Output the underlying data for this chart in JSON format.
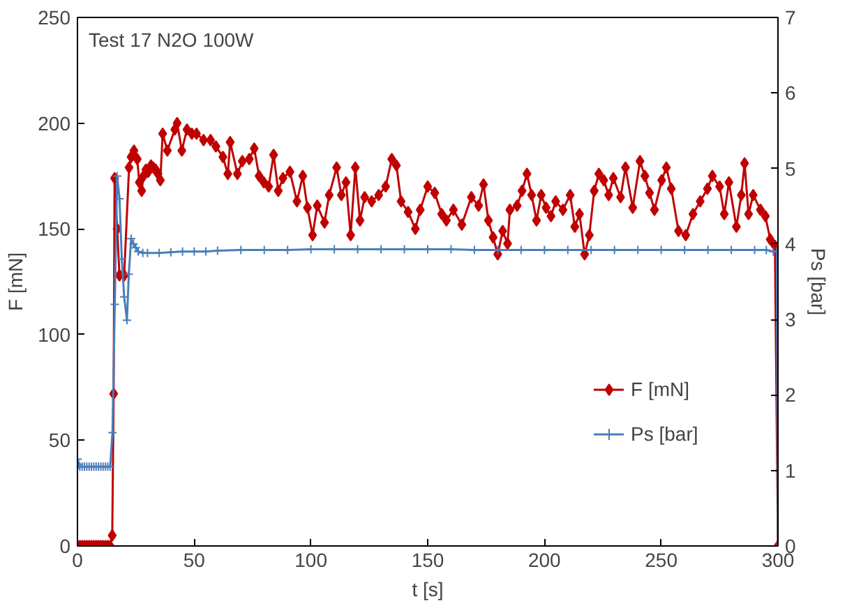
{
  "chart_data": {
    "type": "line",
    "title": "Test 17 N2O 100W",
    "xlabel": "t [s]",
    "ylabel": "F [mN]",
    "y2label": "Ps [bar]",
    "xlim": [
      0,
      300
    ],
    "xticks": [
      0,
      50,
      100,
      150,
      200,
      250,
      300
    ],
    "ylim": [
      0,
      250
    ],
    "yticks": [
      0,
      50,
      100,
      150,
      200,
      250
    ],
    "y2lim": [
      0,
      7
    ],
    "y2ticks": [
      0,
      1,
      2,
      3,
      4,
      5,
      6,
      7
    ],
    "grid": false,
    "legend": "right",
    "line_style": "solid",
    "series": [
      {
        "name": "F [mN]",
        "color": "#c00000",
        "marker": "diamond",
        "x": [
          0,
          1,
          2,
          3,
          4,
          5,
          6,
          7,
          8,
          9,
          10,
          11,
          12,
          13,
          14,
          14.9,
          15.5,
          15.9,
          17,
          18,
          20,
          22.1,
          23,
          24.2,
          25.6,
          26.5,
          27.5,
          28.3,
          29.3,
          30.3,
          31.5,
          32.5,
          33.5,
          34.5,
          35.5,
          36.5,
          38.5,
          41.7,
          42.7,
          44.7,
          46.9,
          49,
          51,
          54,
          57,
          59.3,
          62.3,
          64.4,
          65.4,
          68.5,
          70.6,
          73.6,
          75.7,
          77.8,
          79.8,
          81.9,
          84,
          86,
          88,
          91,
          94,
          96.5,
          98.5,
          100.7,
          102.7,
          105.8,
          107.8,
          111,
          113,
          115,
          117,
          119,
          121,
          123,
          126,
          129,
          132,
          134.6,
          136.6,
          138.6,
          141.6,
          144.7,
          146.8,
          150,
          153,
          156,
          158,
          161,
          164.6,
          168.7,
          171.8,
          173.9,
          176,
          178,
          180,
          182.1,
          184.2,
          185.2,
          188.3,
          190.4,
          192.5,
          194.5,
          196.6,
          198.6,
          200.7,
          202.8,
          204.8,
          207.9,
          211,
          213,
          215,
          217.2,
          219.2,
          221.3,
          223.3,
          225.4,
          227.5,
          229.5,
          232.6,
          234.7,
          237.8,
          240.9,
          243,
          245,
          247.1,
          250.2,
          252.2,
          254.3,
          257.4,
          260.5,
          263.6,
          266.7,
          269.8,
          271.9,
          275,
          277,
          279,
          282.2,
          284.3,
          285.7,
          287.4,
          289.4,
          292.5,
          294.6,
          296.7,
          298.7,
          300
        ],
        "values": [
          0,
          0,
          0,
          0,
          0,
          0,
          0,
          0,
          0,
          0,
          0,
          0,
          0,
          0,
          0,
          5,
          72,
          174,
          150,
          128,
          128,
          179,
          184,
          187,
          183,
          172,
          168,
          175,
          178,
          177,
          180,
          179,
          178,
          176,
          173,
          195,
          187,
          197,
          200,
          187,
          197,
          195,
          195,
          192,
          192,
          189,
          184,
          176,
          191,
          176,
          182,
          183,
          188,
          175,
          172,
          170,
          185,
          168,
          174,
          177,
          163,
          175,
          160,
          147,
          161,
          153,
          166,
          179,
          166,
          172,
          147,
          179,
          154,
          165,
          163,
          166,
          170,
          183,
          180,
          163,
          158,
          150,
          159,
          170,
          167,
          157,
          154,
          159,
          152,
          165,
          161,
          171,
          154,
          146,
          138,
          149,
          143,
          159,
          161,
          168,
          176,
          166,
          154,
          166,
          160,
          156,
          163,
          159,
          166,
          151,
          157,
          138,
          147,
          168,
          176,
          173,
          166,
          174,
          165,
          179,
          160,
          182,
          175,
          167,
          159,
          173,
          179,
          169,
          149,
          147,
          157,
          163,
          169,
          175,
          170,
          157,
          172,
          151,
          166,
          181,
          157,
          166,
          159,
          156,
          145,
          142,
          0
        ]
      },
      {
        "name": "Ps [bar]",
        "color": "#4a7ebb",
        "marker": "cross",
        "axis": "y2",
        "x": [
          0,
          0.5,
          1,
          2,
          3,
          4,
          5,
          6,
          7,
          8,
          9,
          10,
          11,
          12,
          13,
          14,
          15,
          16,
          17,
          18,
          19,
          20,
          21.2,
          22,
          23,
          24,
          25,
          26,
          28,
          30,
          35,
          40,
          45,
          50,
          55,
          60,
          70,
          80,
          90,
          100,
          110,
          120,
          130,
          140,
          150,
          160,
          170,
          180,
          190,
          200,
          210,
          220,
          230,
          240,
          250,
          260,
          270,
          280,
          290,
          295,
          298,
          299.5,
          300
        ],
        "values": [
          1.15,
          1.08,
          1.05,
          1.05,
          1.05,
          1.05,
          1.05,
          1.05,
          1.05,
          1.05,
          1.05,
          1.05,
          1.05,
          1.05,
          1.05,
          1.05,
          1.5,
          3.2,
          4.9,
          4.6,
          3.8,
          3.3,
          2.99,
          3.6,
          4.07,
          4.0,
          3.95,
          3.9,
          3.88,
          3.88,
          3.88,
          3.89,
          3.9,
          3.9,
          3.9,
          3.91,
          3.92,
          3.92,
          3.92,
          3.93,
          3.93,
          3.93,
          3.93,
          3.93,
          3.93,
          3.93,
          3.92,
          3.92,
          3.92,
          3.92,
          3.92,
          3.92,
          3.92,
          3.92,
          3.92,
          3.92,
          3.92,
          3.92,
          3.92,
          3.92,
          3.9,
          3.9,
          0
        ]
      }
    ]
  }
}
